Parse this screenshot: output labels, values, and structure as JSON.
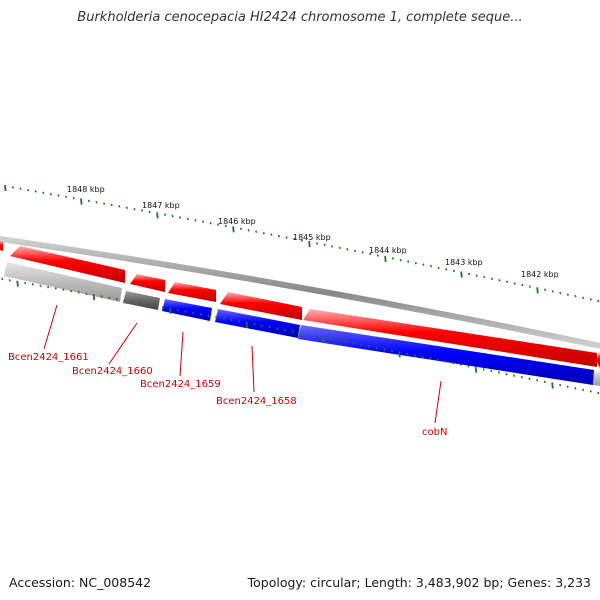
{
  "title": "Burkholderia cenocepacia HI2424 chromosome 1, complete seque...",
  "footer": {
    "accession": "Accession: NC_008542",
    "summary": "Topology: circular; Length: 3,483,902 bp; Genes: 3,233"
  },
  "colors": {
    "forward_cds": "#ff0000",
    "reverse_cds": "#0000ff",
    "other_gene_light": "#bbbbbb",
    "other_gene_dark": "#666666",
    "backbone": "#888888",
    "ticks": "#1a7a1a",
    "label": "#cc0000"
  },
  "ruler": {
    "unit": "kbp",
    "ticks": [
      {
        "position_kbp": 1848,
        "label": "1848 kbp"
      },
      {
        "position_kbp": 1847,
        "label": "1847 kbp"
      },
      {
        "position_kbp": 1846,
        "label": "1846 kbp"
      },
      {
        "position_kbp": 1845,
        "label": "1845 kbp"
      },
      {
        "position_kbp": 1844,
        "label": "1844 kbp"
      },
      {
        "position_kbp": 1843,
        "label": "1843 kbp"
      },
      {
        "position_kbp": 1842,
        "label": "1842 kbp"
      }
    ]
  },
  "gene_labels": [
    {
      "name": "Bcen2424_1661"
    },
    {
      "name": "Bcen2424_1660"
    },
    {
      "name": "Bcen2424_1659"
    },
    {
      "name": "Bcen2424_1658"
    },
    {
      "name": "cobN"
    }
  ]
}
